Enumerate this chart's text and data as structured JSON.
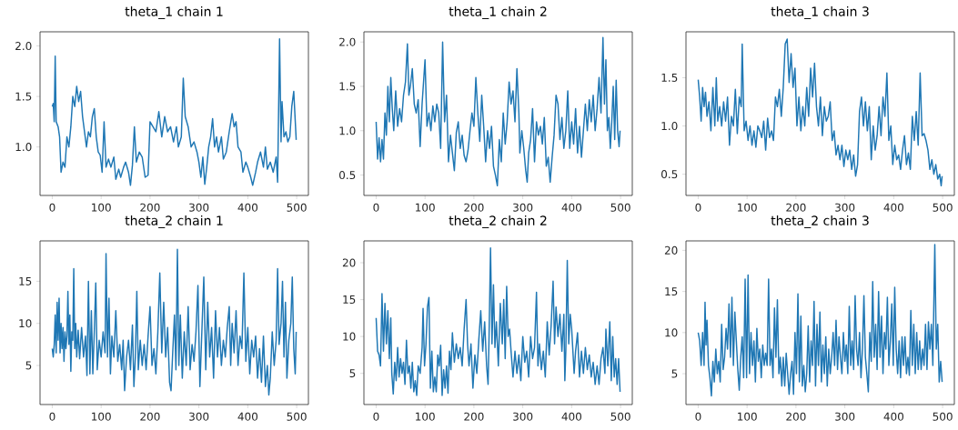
{
  "chart_data": [
    {
      "type": "line",
      "title": "theta_1 chain 1",
      "color": "#1f77b4",
      "xlim": [
        -25,
        524
      ],
      "ylim": [
        0.52,
        2.14
      ],
      "xticks": [
        0,
        100,
        200,
        300,
        400,
        500
      ],
      "yticks": [
        {
          "value": 1.0,
          "label": "1.0"
        },
        {
          "value": 1.5,
          "label": "1.5"
        },
        {
          "value": 2.0,
          "label": "2.0"
        }
      ],
      "x": [
        0,
        2,
        4,
        6,
        8,
        12,
        15,
        18,
        22,
        26,
        30,
        34,
        38,
        42,
        46,
        50,
        54,
        58,
        62,
        66,
        70,
        74,
        78,
        82,
        86,
        90,
        94,
        98,
        102,
        106,
        110,
        115,
        120,
        126,
        130,
        136,
        140,
        146,
        150,
        156,
        160,
        164,
        168,
        172,
        178,
        184,
        190,
        196,
        200,
        206,
        212,
        218,
        224,
        230,
        236,
        242,
        248,
        254,
        258,
        264,
        268,
        272,
        278,
        284,
        290,
        296,
        300,
        304,
        308,
        312,
        316,
        320,
        324,
        328,
        332,
        336,
        340,
        346,
        350,
        356,
        362,
        368,
        372,
        376,
        380,
        386,
        390,
        396,
        400,
        406,
        410,
        416,
        420,
        426,
        432,
        436,
        440,
        446,
        452,
        458,
        461,
        465,
        468,
        470,
        474,
        478,
        482,
        486,
        490,
        494,
        499
      ],
      "values": [
        1.4,
        1.43,
        1.25,
        1.9,
        1.25,
        1.2,
        1.1,
        0.75,
        0.85,
        0.8,
        1.1,
        1.0,
        1.2,
        1.5,
        1.4,
        1.6,
        1.45,
        1.55,
        1.3,
        1.15,
        1.0,
        1.15,
        1.1,
        1.3,
        1.38,
        1.1,
        0.95,
        0.92,
        0.75,
        1.25,
        0.8,
        0.88,
        0.8,
        0.9,
        0.68,
        0.78,
        0.7,
        0.8,
        0.85,
        0.75,
        0.62,
        0.82,
        1.2,
        0.85,
        0.95,
        0.9,
        0.7,
        0.72,
        1.25,
        1.2,
        1.15,
        1.35,
        1.1,
        1.3,
        1.15,
        1.2,
        1.05,
        1.2,
        1.0,
        1.1,
        1.68,
        1.3,
        1.2,
        1.0,
        1.05,
        0.95,
        0.85,
        0.7,
        0.9,
        0.63,
        0.8,
        1.0,
        1.1,
        1.28,
        1.0,
        1.1,
        0.95,
        1.1,
        0.88,
        0.95,
        1.15,
        1.33,
        1.2,
        1.25,
        1.0,
        0.95,
        0.75,
        0.85,
        0.8,
        0.7,
        0.62,
        0.75,
        0.85,
        0.95,
        0.8,
        1.0,
        0.78,
        0.85,
        0.75,
        0.9,
        0.65,
        2.07,
        1.05,
        1.45,
        1.1,
        1.15,
        1.05,
        1.1,
        1.4,
        1.55,
        1.07
      ]
    },
    {
      "type": "line",
      "title": "theta_1 chain 2",
      "color": "#1f77b4",
      "xlim": [
        -25,
        524
      ],
      "ylim": [
        0.27,
        2.115
      ],
      "xticks": [
        0,
        100,
        200,
        300,
        400,
        500
      ],
      "yticks": [
        {
          "value": 0.5,
          "label": "0.5"
        },
        {
          "value": 1.0,
          "label": "1.0"
        },
        {
          "value": 1.5,
          "label": "1.5"
        },
        {
          "value": 2.0,
          "label": "2.0"
        }
      ],
      "x": [
        0,
        3,
        6,
        9,
        12,
        15,
        18,
        21,
        24,
        27,
        30,
        33,
        36,
        40,
        44,
        48,
        52,
        56,
        60,
        64,
        67,
        70,
        74,
        78,
        82,
        86,
        90,
        94,
        100,
        104,
        108,
        112,
        116,
        120,
        124,
        128,
        132,
        136,
        140,
        144,
        148,
        152,
        156,
        160,
        164,
        168,
        172,
        176,
        180,
        184,
        188,
        192,
        196,
        200,
        204,
        208,
        212,
        216,
        220,
        224,
        228,
        232,
        236,
        240,
        244,
        248,
        252,
        256,
        260,
        264,
        268,
        272,
        276,
        280,
        284,
        288,
        292,
        294,
        298,
        302,
        306,
        309,
        312,
        316,
        320,
        324,
        328,
        332,
        336,
        340,
        344,
        348,
        352,
        356,
        360,
        364,
        368,
        372,
        376,
        380,
        384,
        388,
        392,
        396,
        400,
        404,
        408,
        412,
        416,
        420,
        424,
        428,
        432,
        436,
        440,
        444,
        448,
        452,
        456,
        460,
        464,
        467,
        470,
        473,
        476,
        479,
        482,
        485,
        488,
        491,
        494,
        497,
        499
      ],
      "values": [
        1.1,
        0.68,
        0.92,
        0.65,
        0.9,
        0.68,
        1.2,
        0.95,
        1.5,
        1.1,
        1.6,
        1.25,
        1.0,
        1.45,
        1.05,
        1.25,
        1.1,
        1.4,
        1.55,
        1.98,
        1.4,
        1.5,
        1.7,
        1.3,
        1.2,
        1.35,
        0.82,
        1.3,
        1.8,
        1.05,
        1.2,
        1.0,
        1.28,
        1.1,
        1.3,
        1.2,
        0.8,
        2.0,
        1.1,
        1.4,
        0.65,
        0.95,
        0.75,
        0.55,
        0.98,
        1.1,
        0.8,
        0.95,
        0.72,
        0.65,
        0.78,
        1.0,
        1.2,
        1.05,
        1.6,
        1.2,
        0.88,
        1.4,
        1.05,
        0.65,
        1.0,
        0.8,
        1.05,
        0.6,
        0.5,
        0.38,
        0.9,
        0.65,
        1.2,
        0.85,
        1.1,
        1.55,
        1.3,
        1.45,
        1.1,
        1.7,
        1.2,
        0.75,
        1.0,
        0.8,
        0.55,
        0.42,
        0.75,
        0.9,
        1.25,
        0.65,
        1.1,
        0.95,
        1.05,
        0.85,
        1.15,
        0.6,
        0.7,
        0.42,
        0.7,
        0.95,
        1.4,
        1.3,
        0.9,
        1.15,
        0.8,
        1.0,
        1.45,
        0.8,
        1.1,
        0.85,
        1.25,
        0.75,
        1.05,
        0.7,
        1.0,
        1.3,
        1.0,
        1.35,
        1.1,
        1.4,
        1.0,
        1.25,
        1.6,
        1.2,
        2.05,
        1.3,
        1.8,
        1.0,
        1.15,
        0.8,
        1.1,
        1.5,
        0.9,
        1.57,
        1.0,
        0.82,
        1.0
      ]
    },
    {
      "type": "line",
      "title": "theta_1 chain 3",
      "color": "#1f77b4",
      "xlim": [
        -25,
        524
      ],
      "ylim": [
        0.28,
        1.976
      ],
      "xticks": [
        0,
        100,
        200,
        300,
        400,
        500
      ],
      "yticks": [
        {
          "value": 0.5,
          "label": "0.5"
        },
        {
          "value": 1.0,
          "label": "1.0"
        },
        {
          "value": 1.5,
          "label": "1.5"
        }
      ],
      "x": [
        0,
        3,
        6,
        9,
        12,
        15,
        18,
        22,
        26,
        30,
        34,
        37,
        40,
        44,
        48,
        52,
        56,
        60,
        64,
        68,
        72,
        76,
        80,
        84,
        88,
        90,
        94,
        98,
        102,
        106,
        110,
        114,
        118,
        122,
        126,
        130,
        134,
        138,
        142,
        146,
        150,
        154,
        158,
        162,
        166,
        170,
        174,
        178,
        182,
        186,
        190,
        194,
        198,
        202,
        206,
        210,
        214,
        218,
        222,
        226,
        230,
        234,
        238,
        242,
        246,
        250,
        254,
        258,
        262,
        266,
        270,
        274,
        278,
        282,
        286,
        290,
        294,
        298,
        302,
        306,
        310,
        314,
        318,
        322,
        326,
        330,
        334,
        338,
        342,
        346,
        350,
        354,
        358,
        362,
        366,
        370,
        374,
        378,
        382,
        386,
        390,
        394,
        398,
        402,
        406,
        410,
        414,
        418,
        422,
        426,
        430,
        434,
        438,
        442,
        446,
        450,
        454,
        458,
        462,
        466,
        470,
        474,
        478,
        482,
        486,
        490,
        494,
        497,
        499
      ],
      "values": [
        1.48,
        1.3,
        1.05,
        1.4,
        1.2,
        1.35,
        1.1,
        1.25,
        0.95,
        1.4,
        1.0,
        1.5,
        1.05,
        1.2,
        1.0,
        1.25,
        1.05,
        1.3,
        0.8,
        1.1,
        1.0,
        1.38,
        0.92,
        1.3,
        1.2,
        1.85,
        0.95,
        1.05,
        0.85,
        1.0,
        0.8,
        0.95,
        0.78,
        1.0,
        0.95,
        0.88,
        1.05,
        0.75,
        1.08,
        0.88,
        0.95,
        0.85,
        1.3,
        1.2,
        1.38,
        1.1,
        1.4,
        1.85,
        1.9,
        1.45,
        1.75,
        1.4,
        1.6,
        1.0,
        1.3,
        0.95,
        1.2,
        1.0,
        1.4,
        1.1,
        1.6,
        1.3,
        1.65,
        1.2,
        1.0,
        1.3,
        0.9,
        1.2,
        1.05,
        1.1,
        1.25,
        0.85,
        0.95,
        0.7,
        0.8,
        0.65,
        0.8,
        0.58,
        0.75,
        0.65,
        0.75,
        0.55,
        0.7,
        0.48,
        0.6,
        1.15,
        1.3,
        1.0,
        1.25,
        0.95,
        1.2,
        0.65,
        1.0,
        0.75,
        0.9,
        1.2,
        0.9,
        1.3,
        1.1,
        1.55,
        0.85,
        1.0,
        0.6,
        0.8,
        0.65,
        0.7,
        0.55,
        0.75,
        0.9,
        0.6,
        0.72,
        0.55,
        1.1,
        0.85,
        1.15,
        0.8,
        1.55,
        0.9,
        0.92,
        0.85,
        0.75,
        0.55,
        0.65,
        0.5,
        0.6,
        0.45,
        0.5,
        0.38,
        0.48
      ]
    },
    {
      "type": "line",
      "title": "theta_2 chain 1",
      "color": "#1f77b4",
      "xlim": [
        -25,
        524
      ],
      "ylim": [
        0.36,
        19.8
      ],
      "xticks": [
        0,
        100,
        200,
        300,
        400,
        500
      ],
      "yticks": [
        5,
        10,
        15
      ],
      "x": [
        0,
        2,
        4,
        6,
        8,
        10,
        12,
        14,
        16,
        18,
        20,
        22,
        24,
        26,
        28,
        30,
        32,
        34,
        36,
        38,
        40,
        42,
        44,
        46,
        48,
        50,
        53,
        56,
        60,
        64,
        68,
        71,
        74,
        77,
        80,
        83,
        86,
        89,
        92,
        96,
        100,
        104,
        108,
        110,
        113,
        116,
        119,
        122,
        126,
        130,
        134,
        138,
        142,
        145,
        148,
        152,
        156,
        160,
        164,
        167,
        170,
        173,
        176,
        180,
        184,
        188,
        192,
        196,
        200,
        204,
        208,
        212,
        216,
        220,
        224,
        228,
        232,
        236,
        240,
        243,
        246,
        250,
        253,
        256,
        259,
        262,
        266,
        270,
        274,
        278,
        282,
        286,
        290,
        294,
        298,
        302,
        306,
        310,
        314,
        318,
        322,
        326,
        330,
        334,
        338,
        342,
        346,
        350,
        354,
        358,
        362,
        365,
        368,
        372,
        376,
        380,
        384,
        388,
        392,
        396,
        400,
        404,
        408,
        412,
        416,
        420,
        424,
        428,
        432,
        436,
        440,
        443,
        446,
        450,
        454,
        458,
        461,
        464,
        468,
        471,
        474,
        477,
        480,
        484,
        488,
        491,
        494,
        497,
        499
      ],
      "values": [
        7,
        6,
        7.5,
        11,
        6.5,
        12.5,
        8,
        13,
        6.5,
        10,
        7,
        9.5,
        5.5,
        9,
        7,
        8.5,
        13.8,
        7.5,
        11,
        4.3,
        9,
        8,
        16.5,
        7,
        10,
        6,
        9.2,
        5.8,
        9.5,
        6,
        8.5,
        3.8,
        15,
        4,
        11.5,
        4,
        9,
        14.8,
        4.5,
        8,
        6,
        9,
        6.5,
        18.3,
        6,
        13,
        4,
        8.5,
        6,
        11.5,
        5.5,
        7.5,
        4.5,
        8,
        2,
        6,
        8,
        4.5,
        9.8,
        2.5,
        6,
        13.8,
        4.5,
        8,
        5,
        7.5,
        4.5,
        8.5,
        12,
        5,
        7,
        4,
        9,
        16,
        6.5,
        12.5,
        6,
        9.5,
        3,
        2,
        6,
        11,
        4.5,
        18.8,
        5,
        11,
        3.5,
        9,
        5,
        12,
        4.5,
        7.5,
        5.5,
        9,
        14.5,
        2.5,
        9,
        15.5,
        4.5,
        12.5,
        6,
        9.5,
        3.5,
        11.5,
        6,
        9.5,
        5,
        8,
        6,
        9.5,
        12,
        5,
        10,
        6.5,
        11.5,
        5,
        8.5,
        7,
        16,
        5.5,
        9.5,
        4,
        8,
        6,
        8.5,
        3.5,
        7,
        3,
        8.5,
        2.5,
        5,
        1.5,
        3.5,
        9,
        5,
        8,
        16.5,
        7.5,
        10,
        15,
        6,
        12.5,
        3.5,
        8,
        10,
        15.5,
        7,
        4,
        9
      ]
    },
    {
      "type": "line",
      "title": "theta_2 chain 2",
      "color": "#1f77b4",
      "xlim": [
        -25,
        524
      ],
      "ylim": [
        0.77,
        22.96
      ],
      "xticks": [
        0,
        100,
        200,
        300,
        400,
        500
      ],
      "yticks": [
        5,
        10,
        15,
        20
      ],
      "x": [
        0,
        3,
        6,
        9,
        12,
        15,
        18,
        21,
        24,
        27,
        30,
        32,
        35,
        38,
        41,
        44,
        47,
        50,
        53,
        56,
        59,
        62,
        65,
        68,
        71,
        74,
        77,
        80,
        83,
        86,
        90,
        94,
        96,
        99,
        102,
        105,
        108,
        111,
        114,
        117,
        120,
        123,
        126,
        129,
        132,
        135,
        138,
        141,
        144,
        147,
        150,
        153,
        156,
        160,
        164,
        168,
        172,
        176,
        180,
        184,
        187,
        190,
        194,
        198,
        202,
        206,
        210,
        214,
        218,
        222,
        226,
        229,
        231,
        234,
        237,
        240,
        243,
        246,
        250,
        254,
        258,
        261,
        264,
        267,
        270,
        273,
        276,
        280,
        284,
        288,
        292,
        296,
        300,
        304,
        308,
        312,
        316,
        320,
        324,
        328,
        331,
        334,
        338,
        342,
        346,
        350,
        354,
        358,
        362,
        365,
        368,
        372,
        376,
        380,
        384,
        386,
        388,
        391,
        394,
        397,
        400,
        405,
        408,
        412,
        416,
        420,
        424,
        428,
        432,
        436,
        440,
        444,
        448,
        452,
        456,
        460,
        464,
        468,
        470,
        474,
        478,
        481,
        484,
        487,
        490,
        493,
        496,
        499
      ],
      "values": [
        12.5,
        8,
        7.5,
        6,
        15.8,
        8,
        14.5,
        9,
        13.5,
        7,
        12.5,
        5,
        2.2,
        6.5,
        4,
        8.5,
        4.5,
        7,
        5,
        6.5,
        3.5,
        9.5,
        5,
        6,
        3,
        6.5,
        2.5,
        4,
        2,
        6,
        5,
        8.5,
        13.8,
        6,
        9,
        14,
        15.3,
        3,
        8,
        2.5,
        4.5,
        2.5,
        7.5,
        6,
        8.8,
        2,
        5.5,
        3,
        6,
        2.3,
        8,
        5.5,
        10.5,
        6.5,
        9,
        7,
        8.5,
        6,
        11,
        15,
        9,
        6,
        9,
        3,
        7.5,
        5,
        9.5,
        13.5,
        8,
        12,
        6,
        3.5,
        10,
        22,
        9,
        17,
        8.5,
        12,
        6,
        14.5,
        9,
        15,
        7,
        16.8,
        10,
        11,
        8,
        4.5,
        8,
        5,
        7.5,
        4,
        10,
        6.5,
        8,
        4.5,
        10,
        7,
        8.5,
        16,
        6,
        9,
        5.5,
        8,
        4.5,
        12,
        7.5,
        11.5,
        17.5,
        9,
        14,
        10,
        13,
        8,
        13,
        4,
        8,
        20.3,
        9,
        13,
        11,
        5,
        8,
        10.5,
        4.5,
        8,
        5,
        8.5,
        5.5,
        7.5,
        4.5,
        6.5,
        3.5,
        6,
        3.5,
        7,
        8.5,
        5,
        11,
        6,
        12,
        4,
        10,
        4.5,
        7,
        3.5,
        7,
        2.5
      ]
    },
    {
      "type": "line",
      "title": "theta_2 chain 3",
      "color": "#1f77b4",
      "xlim": [
        -25,
        524
      ],
      "ylim": [
        1.25,
        21.15
      ],
      "xticks": [
        0,
        100,
        200,
        300,
        400,
        500
      ],
      "yticks": [
        5,
        10,
        15,
        20
      ],
      "x": [
        0,
        3,
        6,
        9,
        12,
        14,
        16,
        18,
        21,
        24,
        27,
        30,
        33,
        36,
        39,
        42,
        45,
        48,
        51,
        54,
        57,
        60,
        63,
        66,
        69,
        72,
        75,
        78,
        81,
        84,
        87,
        90,
        93,
        96,
        99,
        102,
        105,
        108,
        111,
        114,
        117,
        120,
        123,
        126,
        129,
        132,
        135,
        138,
        141,
        144,
        147,
        150,
        153,
        156,
        159,
        162,
        165,
        168,
        171,
        174,
        177,
        180,
        183,
        186,
        189,
        192,
        195,
        198,
        201,
        204,
        207,
        210,
        213,
        216,
        219,
        222,
        225,
        228,
        231,
        234,
        237,
        240,
        243,
        246,
        249,
        252,
        255,
        258,
        261,
        264,
        267,
        270,
        273,
        276,
        279,
        282,
        285,
        288,
        291,
        294,
        297,
        300,
        303,
        306,
        309,
        312,
        315,
        318,
        321,
        324,
        327,
        330,
        333,
        336,
        339,
        342,
        345,
        348,
        351,
        354,
        357,
        360,
        363,
        366,
        369,
        372,
        375,
        378,
        381,
        384,
        387,
        390,
        393,
        396,
        399,
        402,
        405,
        408,
        411,
        414,
        417,
        420,
        423,
        426,
        429,
        432,
        435,
        438,
        441,
        444,
        447,
        450,
        453,
        456,
        459,
        462,
        465,
        468,
        471,
        474,
        477,
        480,
        484,
        487,
        490,
        493,
        496,
        499
      ],
      "values": [
        10,
        9,
        6,
        10,
        6,
        13.7,
        8.5,
        11.5,
        6,
        4.5,
        2.3,
        6.5,
        4,
        8,
        5,
        6.5,
        4,
        11,
        5.5,
        7,
        10.5,
        8,
        13.5,
        7,
        14.3,
        6,
        12.5,
        9,
        5.5,
        3,
        7,
        9.5,
        4.5,
        16.5,
        4.5,
        17,
        5,
        10,
        6,
        9,
        4,
        10.5,
        6.5,
        8,
        4.5,
        8.5,
        6,
        7.5,
        6,
        16.5,
        6,
        8,
        4.5,
        13,
        7,
        14,
        5,
        7,
        3.5,
        7,
        3.5,
        7.5,
        5,
        2.5,
        5,
        6.5,
        2.5,
        10,
        5,
        14.7,
        4,
        12,
        3.5,
        6,
        2.8,
        5,
        10.8,
        4,
        9,
        6,
        13.8,
        3.5,
        11,
        6,
        12.5,
        4,
        8.5,
        5,
        9.5,
        3.5,
        8,
        5,
        7,
        10,
        6,
        11.5,
        5.5,
        9.5,
        7,
        5,
        10,
        6.5,
        8.5,
        5,
        13.2,
        6,
        9,
        5.5,
        14.5,
        8,
        6,
        10,
        4.5,
        8,
        14.5,
        7,
        5,
        2.8,
        10,
        6.5,
        16.2,
        7,
        11,
        5.5,
        15,
        7,
        12,
        5,
        10,
        8,
        14.3,
        6,
        9,
        13.5,
        6,
        15.5,
        8,
        5,
        9,
        4.5,
        9.5,
        6,
        9.5,
        5,
        7,
        4.8,
        12.7,
        6,
        11,
        5,
        10,
        5.5,
        9,
        5.5,
        8,
        6,
        11,
        5.5,
        11.3,
        8,
        11,
        6,
        20.7,
        8,
        11,
        4,
        6.5,
        4
      ]
    }
  ]
}
